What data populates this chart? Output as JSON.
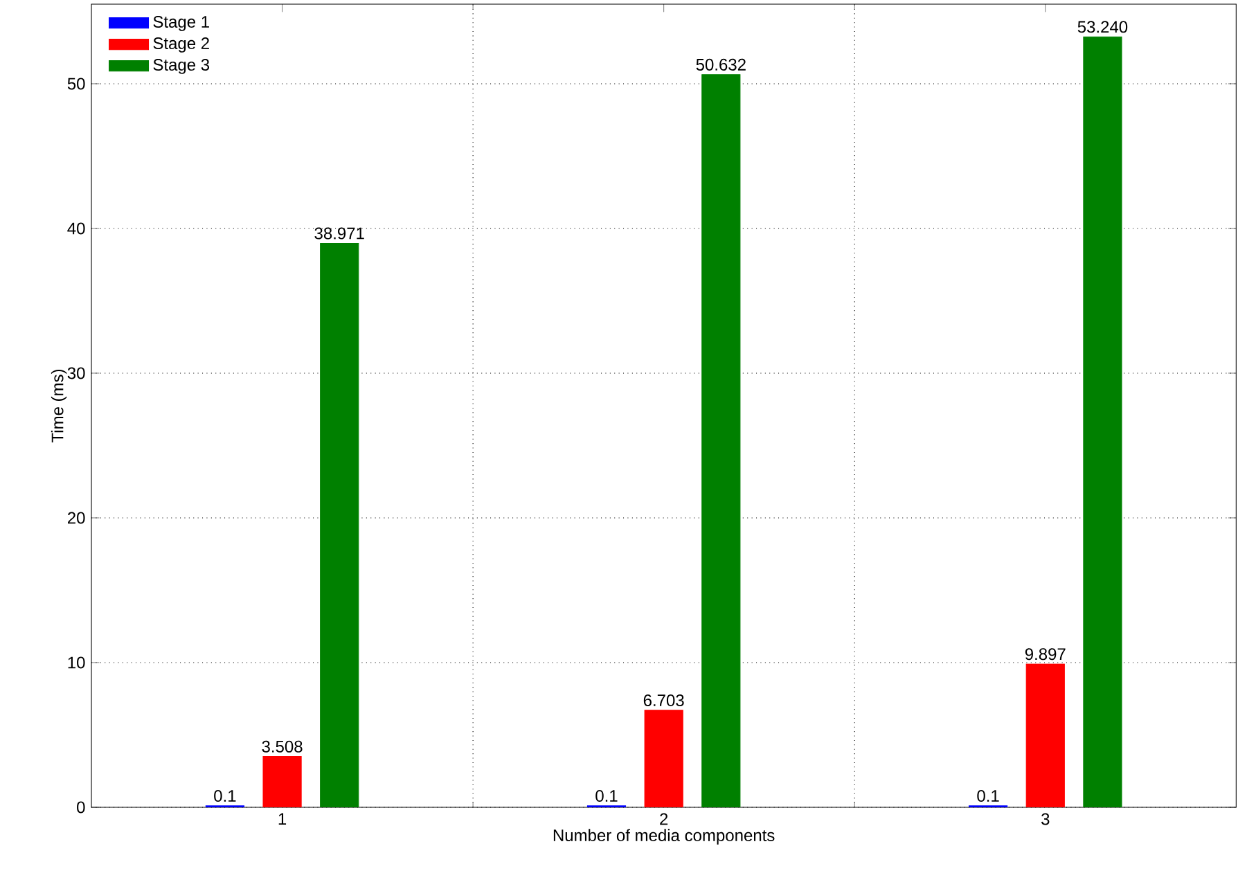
{
  "chart_data": {
    "type": "bar",
    "xlabel": "Number of media components",
    "ylabel": "Time (ms)",
    "categories": [
      "1",
      "2",
      "3"
    ],
    "series": [
      {
        "name": "Stage 1",
        "color": "#0000ff",
        "values": [
          0.1,
          0.1,
          0.1
        ],
        "value_labels": [
          "0.1",
          "0.1",
          "0.1"
        ]
      },
      {
        "name": "Stage 2",
        "color": "#ff0000",
        "values": [
          3.508,
          6.703,
          9.897
        ],
        "value_labels": [
          "3.508",
          "6.703",
          "9.897"
        ]
      },
      {
        "name": "Stage 3",
        "color": "#008000",
        "values": [
          38.971,
          50.632,
          53.24
        ],
        "value_labels": [
          "38.971",
          "50.632",
          "53.240"
        ]
      }
    ],
    "ylim": [
      0,
      55.5
    ],
    "yticks": [
      0,
      10,
      20,
      30,
      40,
      50
    ],
    "grid": true,
    "legend": "top left"
  }
}
